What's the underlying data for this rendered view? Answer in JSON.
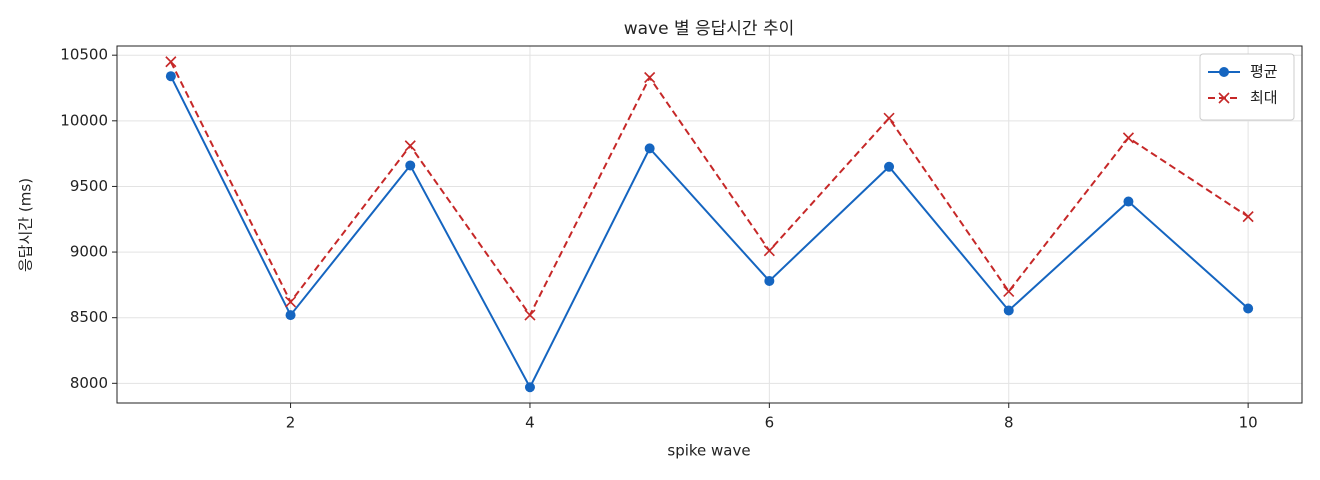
{
  "chart_data": {
    "type": "line",
    "title": "wave 별 응답시간 추이",
    "xlabel": "spike wave",
    "ylabel": "응답시간 (ms)",
    "x": [
      1,
      2,
      3,
      4,
      5,
      6,
      7,
      8,
      9,
      10
    ],
    "series": [
      {
        "name": "평균",
        "color": "#1565c0",
        "marker": "o",
        "linestyle": "solid",
        "values": [
          10340,
          8520,
          9660,
          7970,
          9790,
          8780,
          9650,
          8555,
          9385,
          8570
        ]
      },
      {
        "name": "최대",
        "color": "#c62828",
        "marker": "x",
        "linestyle": "dashed",
        "values": [
          10450,
          8620,
          9810,
          8520,
          10330,
          9010,
          10020,
          8700,
          9870,
          9270
        ]
      }
    ],
    "xlim": [
      0.55,
      10.45
    ],
    "ylim": [
      7850,
      10570
    ],
    "xticks": [
      2,
      4,
      6,
      8,
      10
    ],
    "yticks": [
      8000,
      8500,
      9000,
      9500,
      10000,
      10500
    ],
    "grid": true,
    "legend": "upper right"
  }
}
